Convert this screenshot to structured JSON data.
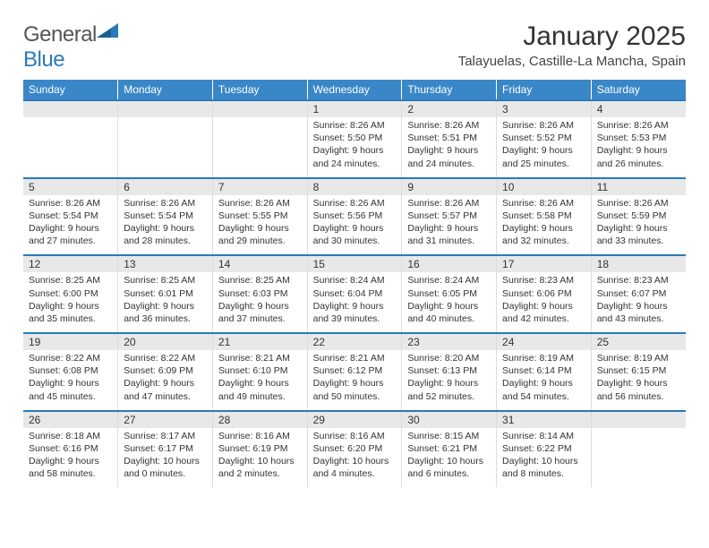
{
  "brand": {
    "name1": "General",
    "name2": "Blue"
  },
  "title": "January 2025",
  "location": "Talayuelas, Castille-La Mancha, Spain",
  "days_of_week": [
    "Sunday",
    "Monday",
    "Tuesday",
    "Wednesday",
    "Thursday",
    "Friday",
    "Saturday"
  ],
  "colors": {
    "header_bg": "#3a87c8",
    "header_text": "#ffffff",
    "row_border": "#2a7ab9",
    "daynum_bg": "#e8e8e8",
    "text": "#333333"
  },
  "weeks": [
    [
      {
        "n": "",
        "sr": "",
        "ss": "",
        "dl": ""
      },
      {
        "n": "",
        "sr": "",
        "ss": "",
        "dl": ""
      },
      {
        "n": "",
        "sr": "",
        "ss": "",
        "dl": ""
      },
      {
        "n": "1",
        "sr": "8:26 AM",
        "ss": "5:50 PM",
        "dl": "9 hours and 24 minutes."
      },
      {
        "n": "2",
        "sr": "8:26 AM",
        "ss": "5:51 PM",
        "dl": "9 hours and 24 minutes."
      },
      {
        "n": "3",
        "sr": "8:26 AM",
        "ss": "5:52 PM",
        "dl": "9 hours and 25 minutes."
      },
      {
        "n": "4",
        "sr": "8:26 AM",
        "ss": "5:53 PM",
        "dl": "9 hours and 26 minutes."
      }
    ],
    [
      {
        "n": "5",
        "sr": "8:26 AM",
        "ss": "5:54 PM",
        "dl": "9 hours and 27 minutes."
      },
      {
        "n": "6",
        "sr": "8:26 AM",
        "ss": "5:54 PM",
        "dl": "9 hours and 28 minutes."
      },
      {
        "n": "7",
        "sr": "8:26 AM",
        "ss": "5:55 PM",
        "dl": "9 hours and 29 minutes."
      },
      {
        "n": "8",
        "sr": "8:26 AM",
        "ss": "5:56 PM",
        "dl": "9 hours and 30 minutes."
      },
      {
        "n": "9",
        "sr": "8:26 AM",
        "ss": "5:57 PM",
        "dl": "9 hours and 31 minutes."
      },
      {
        "n": "10",
        "sr": "8:26 AM",
        "ss": "5:58 PM",
        "dl": "9 hours and 32 minutes."
      },
      {
        "n": "11",
        "sr": "8:26 AM",
        "ss": "5:59 PM",
        "dl": "9 hours and 33 minutes."
      }
    ],
    [
      {
        "n": "12",
        "sr": "8:25 AM",
        "ss": "6:00 PM",
        "dl": "9 hours and 35 minutes."
      },
      {
        "n": "13",
        "sr": "8:25 AM",
        "ss": "6:01 PM",
        "dl": "9 hours and 36 minutes."
      },
      {
        "n": "14",
        "sr": "8:25 AM",
        "ss": "6:03 PM",
        "dl": "9 hours and 37 minutes."
      },
      {
        "n": "15",
        "sr": "8:24 AM",
        "ss": "6:04 PM",
        "dl": "9 hours and 39 minutes."
      },
      {
        "n": "16",
        "sr": "8:24 AM",
        "ss": "6:05 PM",
        "dl": "9 hours and 40 minutes."
      },
      {
        "n": "17",
        "sr": "8:23 AM",
        "ss": "6:06 PM",
        "dl": "9 hours and 42 minutes."
      },
      {
        "n": "18",
        "sr": "8:23 AM",
        "ss": "6:07 PM",
        "dl": "9 hours and 43 minutes."
      }
    ],
    [
      {
        "n": "19",
        "sr": "8:22 AM",
        "ss": "6:08 PM",
        "dl": "9 hours and 45 minutes."
      },
      {
        "n": "20",
        "sr": "8:22 AM",
        "ss": "6:09 PM",
        "dl": "9 hours and 47 minutes."
      },
      {
        "n": "21",
        "sr": "8:21 AM",
        "ss": "6:10 PM",
        "dl": "9 hours and 49 minutes."
      },
      {
        "n": "22",
        "sr": "8:21 AM",
        "ss": "6:12 PM",
        "dl": "9 hours and 50 minutes."
      },
      {
        "n": "23",
        "sr": "8:20 AM",
        "ss": "6:13 PM",
        "dl": "9 hours and 52 minutes."
      },
      {
        "n": "24",
        "sr": "8:19 AM",
        "ss": "6:14 PM",
        "dl": "9 hours and 54 minutes."
      },
      {
        "n": "25",
        "sr": "8:19 AM",
        "ss": "6:15 PM",
        "dl": "9 hours and 56 minutes."
      }
    ],
    [
      {
        "n": "26",
        "sr": "8:18 AM",
        "ss": "6:16 PM",
        "dl": "9 hours and 58 minutes."
      },
      {
        "n": "27",
        "sr": "8:17 AM",
        "ss": "6:17 PM",
        "dl": "10 hours and 0 minutes."
      },
      {
        "n": "28",
        "sr": "8:16 AM",
        "ss": "6:19 PM",
        "dl": "10 hours and 2 minutes."
      },
      {
        "n": "29",
        "sr": "8:16 AM",
        "ss": "6:20 PM",
        "dl": "10 hours and 4 minutes."
      },
      {
        "n": "30",
        "sr": "8:15 AM",
        "ss": "6:21 PM",
        "dl": "10 hours and 6 minutes."
      },
      {
        "n": "31",
        "sr": "8:14 AM",
        "ss": "6:22 PM",
        "dl": "10 hours and 8 minutes."
      },
      {
        "n": "",
        "sr": "",
        "ss": "",
        "dl": ""
      }
    ]
  ],
  "labels": {
    "sunrise": "Sunrise:",
    "sunset": "Sunset:",
    "daylight": "Daylight:"
  }
}
